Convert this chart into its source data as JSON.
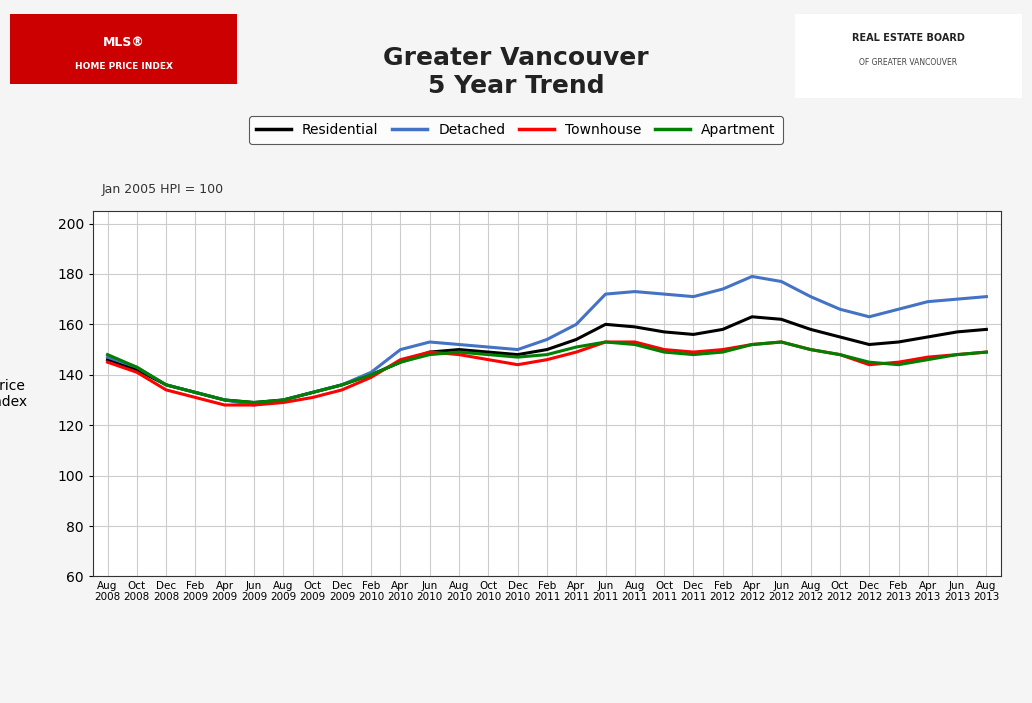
{
  "title_line1": "Greater Vancouver",
  "title_line2": "5 Year Trend",
  "ylabel": "Price\nIndex",
  "note": "Jan 2005 HPI = 100",
  "ylim": [
    60,
    205
  ],
  "yticks": [
    60,
    80,
    100,
    120,
    140,
    160,
    180,
    200
  ],
  "background_color": "#f5f5f5",
  "plot_bg_color": "#ffffff",
  "grid_color": "#cccccc",
  "x_labels": [
    "Aug\n2008",
    "Oct\n2008",
    "Dec\n2008",
    "Feb\n2009",
    "Apr\n2009",
    "Jun\n2009",
    "Aug\n2009",
    "Oct\n2009",
    "Dec\n2009",
    "Feb\n2010",
    "Apr\n2010",
    "Jun\n2010",
    "Aug\n2010",
    "Oct\n2010",
    "Dec\n2010",
    "Feb\n2011",
    "Apr\n2011",
    "Jun\n2011",
    "Aug\n2011",
    "Oct\n2011",
    "Dec\n2011",
    "Feb\n2012",
    "Apr\n2012",
    "Jun\n2012",
    "Aug\n2012",
    "Oct\n2012",
    "Dec\n2012",
    "Feb\n2013",
    "Apr\n2013",
    "Jun\n2013",
    "Aug\n2013"
  ],
  "series": {
    "Residential": {
      "color": "#000000",
      "linewidth": 2.2,
      "values": [
        146,
        142,
        136,
        133,
        130,
        129,
        130,
        133,
        136,
        140,
        145,
        149,
        150,
        149,
        148,
        150,
        154,
        160,
        159,
        157,
        156,
        158,
        163,
        162,
        158,
        155,
        152,
        153,
        155,
        157,
        158
      ]
    },
    "Detached": {
      "color": "#4472c4",
      "linewidth": 2.2,
      "values": [
        147,
        143,
        136,
        133,
        130,
        128,
        130,
        133,
        136,
        141,
        150,
        153,
        152,
        151,
        150,
        154,
        160,
        172,
        173,
        172,
        171,
        174,
        179,
        177,
        171,
        166,
        163,
        166,
        169,
        170,
        171
      ]
    },
    "Townhouse": {
      "color": "#ff0000",
      "linewidth": 2.2,
      "values": [
        145,
        141,
        134,
        131,
        128,
        128,
        129,
        131,
        134,
        139,
        146,
        149,
        148,
        146,
        144,
        146,
        149,
        153,
        153,
        150,
        149,
        150,
        152,
        153,
        150,
        148,
        144,
        145,
        147,
        148,
        149
      ]
    },
    "Apartment": {
      "color": "#008000",
      "linewidth": 2.2,
      "values": [
        148,
        143,
        136,
        133,
        130,
        129,
        130,
        133,
        136,
        140,
        145,
        148,
        149,
        148,
        147,
        148,
        151,
        153,
        152,
        149,
        148,
        149,
        152,
        153,
        150,
        148,
        145,
        144,
        146,
        148,
        149
      ]
    }
  },
  "legend_order": [
    "Residential",
    "Detached",
    "Townhouse",
    "Apartment"
  ],
  "border_color": "#333333"
}
